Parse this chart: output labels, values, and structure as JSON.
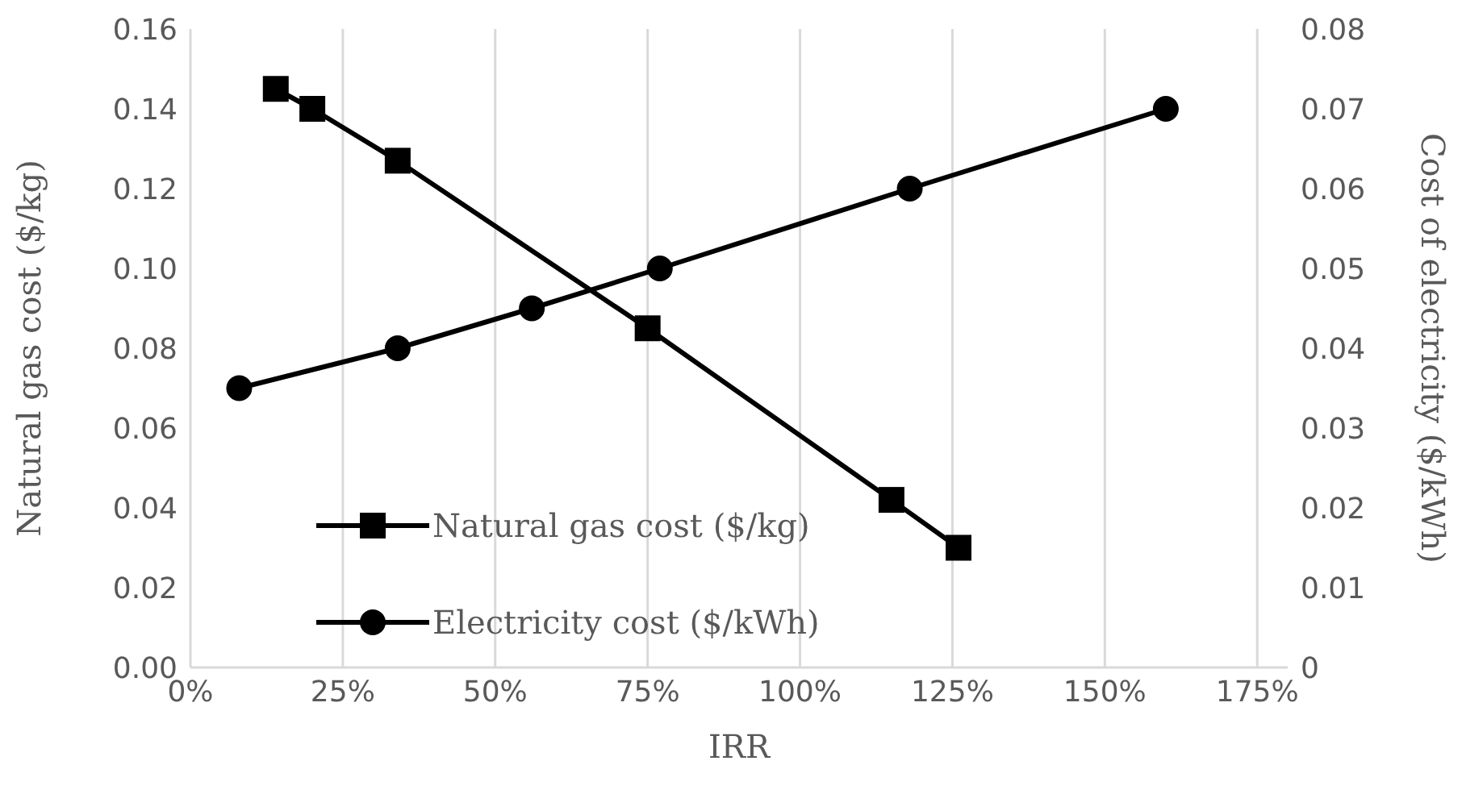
{
  "chart_data": {
    "type": "line",
    "xlabel": "IRR",
    "ylabel": "Natural gas cost ($/kg)",
    "y2label": "Cost of electricity ($/kWh)",
    "xlim": [
      0,
      180
    ],
    "xticks": [
      {
        "value": 0,
        "label": "0%"
      },
      {
        "value": 25,
        "label": "25%"
      },
      {
        "value": 50,
        "label": "50%"
      },
      {
        "value": 75,
        "label": "75%"
      },
      {
        "value": 100,
        "label": "100%"
      },
      {
        "value": 125,
        "label": "125%"
      },
      {
        "value": 150,
        "label": "150%"
      },
      {
        "value": 175,
        "label": "175%"
      }
    ],
    "ylim": [
      0,
      0.16
    ],
    "yticks": [
      {
        "value": 0,
        "label": "0.00"
      },
      {
        "value": 0.02,
        "label": "0.02"
      },
      {
        "value": 0.04,
        "label": "0.04"
      },
      {
        "value": 0.06,
        "label": "0.06"
      },
      {
        "value": 0.08,
        "label": "0.08"
      },
      {
        "value": 0.1,
        "label": "0.10"
      },
      {
        "value": 0.12,
        "label": "0.12"
      },
      {
        "value": 0.14,
        "label": "0.14"
      },
      {
        "value": 0.16,
        "label": "0.16"
      }
    ],
    "y2lim": [
      0,
      0.08
    ],
    "y2ticks": [
      0,
      0.01,
      0.02,
      0.03,
      0.04,
      0.05,
      0.06,
      0.07,
      0.08
    ],
    "grid": true,
    "legend": "bottom left",
    "line_style": "solid",
    "series": [
      {
        "name": "Natural gas cost ($/kg)",
        "color": "#000000",
        "marker": "square",
        "x": [
          14,
          20,
          34,
          75,
          115,
          126
        ],
        "values": [
          0.145,
          0.14,
          0.127,
          0.085,
          0.042,
          0.03
        ]
      },
      {
        "name": "Electricity cost ($/kWh)",
        "color": "#000000",
        "marker": "circle",
        "axis": "y2",
        "x": [
          8,
          34,
          56,
          77,
          118,
          160
        ],
        "values": [
          0.035,
          0.04,
          0.045,
          0.05,
          0.06,
          0.07
        ]
      }
    ]
  }
}
